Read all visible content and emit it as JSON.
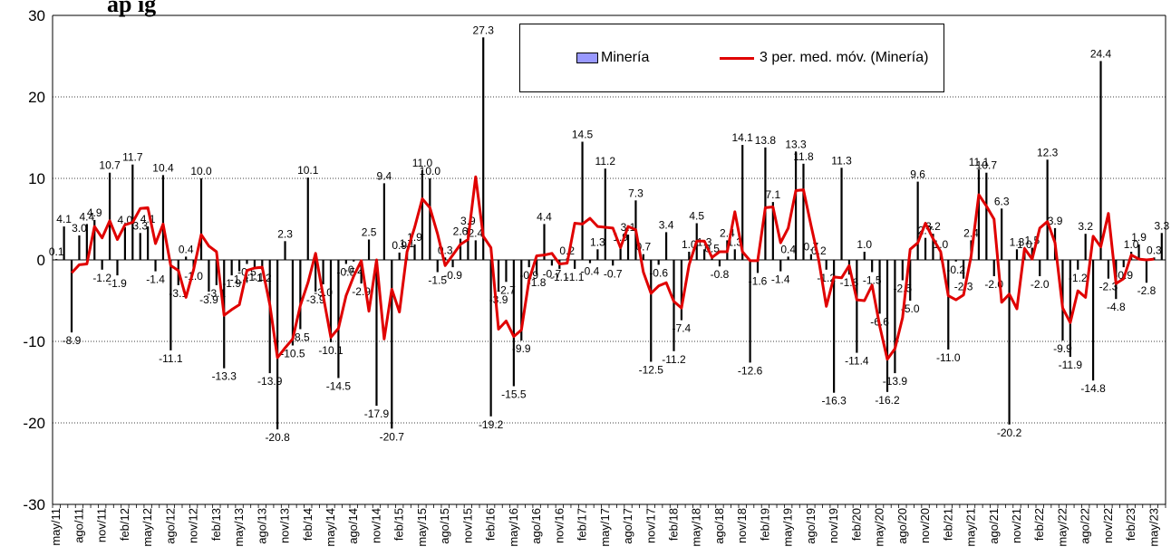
{
  "title_fragment": "ap ig",
  "chart_data": {
    "type": "bar",
    "ylim": [
      -30,
      30
    ],
    "yticks": [
      "30",
      "20",
      "10",
      "0",
      "-10",
      "-20",
      "-30"
    ],
    "xtick_labels": [
      "may/11",
      "ago/11",
      "nov/11",
      "feb/12",
      "may/12",
      "ago/12",
      "nov/12",
      "feb/13",
      "may/13",
      "ago/13",
      "nov/13",
      "feb/14",
      "may/14",
      "ago/14",
      "nov/14",
      "feb/15",
      "may/15",
      "ago/15",
      "nov/15",
      "feb/16",
      "may/16",
      "ago/16",
      "nov/16",
      "feb/17",
      "may/17",
      "ago/17",
      "nov/17",
      "feb/18",
      "may/18",
      "ago/18",
      "nov/18",
      "feb/19",
      "may/19",
      "ago/19",
      "nov/19",
      "feb/20",
      "may/20",
      "ago/20",
      "nov/20",
      "feb/21",
      "may/21",
      "ago/21",
      "nov/21",
      "feb/22",
      "may/22",
      "ago/22",
      "nov/22",
      "feb/23",
      "may/23"
    ],
    "series": [
      {
        "name": "Minería",
        "type": "bar",
        "values": [
          0.1,
          4.1,
          -8.9,
          3.0,
          4.4,
          4.9,
          -1.2,
          10.7,
          -1.9,
          4.0,
          11.7,
          3.3,
          4.1,
          -1.4,
          10.4,
          -11.1,
          -3.1,
          0.4,
          -1.0,
          10.0,
          -3.9,
          -3.1,
          -13.3,
          -1.9,
          -1.4,
          -0.5,
          -1.1,
          -1.2,
          -13.9,
          -20.8,
          2.3,
          -10.5,
          -8.5,
          10.1,
          -3.9,
          -3.0,
          -10.1,
          -14.5,
          -0.5,
          -0.2,
          -2.9,
          2.5,
          -17.9,
          9.4,
          -20.7,
          0.9,
          1.1,
          1.9,
          11.0,
          10.0,
          -1.5,
          0.3,
          -0.9,
          2.6,
          3.9,
          2.4,
          27.3,
          -19.2,
          -3.9,
          -2.7,
          -15.5,
          -9.9,
          -0.9,
          -1.8,
          4.4,
          -0.7,
          -1.1,
          0.2,
          -1.1,
          14.5,
          -0.4,
          1.3,
          11.2,
          -0.7,
          1.9,
          3.1,
          7.3,
          0.7,
          -12.5,
          -0.6,
          3.4,
          -11.2,
          -7.4,
          1.0,
          4.5,
          1.3,
          0.5,
          -0.8,
          2.4,
          1.3,
          14.1,
          -12.6,
          -1.6,
          13.8,
          7.1,
          -1.4,
          0.4,
          13.3,
          11.8,
          0.7,
          0.2,
          -1.2,
          -16.3,
          11.3,
          -1.8,
          -11.4,
          1.0,
          -1.5,
          -6.6,
          -16.2,
          -13.9,
          -2.5,
          -5.0,
          9.6,
          2.7,
          3.2,
          1.0,
          -11.0,
          -0.2,
          -2.3,
          2.4,
          11.1,
          10.7,
          -2.0,
          6.3,
          -20.2,
          1.3,
          1.0,
          1.5,
          -2.0,
          12.3,
          3.9,
          -9.9,
          -11.9,
          -1.2,
          3.2,
          -14.8,
          24.4,
          -2.3,
          -4.8,
          -0.9,
          1.0,
          1.9,
          -2.8,
          0.3,
          3.3
        ]
      },
      {
        "name": "3 per. med. móv. (Minería)",
        "type": "line",
        "color": "#e00000",
        "values": [
          null,
          null,
          -1.6,
          -0.6,
          -0.5,
          4.1,
          2.7,
          4.8,
          2.5,
          4.3,
          4.6,
          6.3,
          6.4,
          2.0,
          4.4,
          -0.7,
          -1.3,
          -4.6,
          -1.2,
          3.1,
          1.7,
          1.0,
          -6.8,
          -6.1,
          -5.5,
          -1.3,
          -1.0,
          -0.9,
          -5.5,
          -12.0,
          -10.8,
          -9.7,
          -5.6,
          -2.8,
          0.8,
          -4.4,
          -9.5,
          -8.4,
          -4.4,
          -2.0,
          -0.1,
          -6.3,
          0.0,
          -9.7,
          -3.6,
          -6.4,
          1.0,
          4.0,
          7.5,
          6.4,
          3.2,
          -0.7,
          0.6,
          1.9,
          2.5,
          10.2,
          2.9,
          1.5,
          -8.5,
          -7.5,
          -9.4,
          -8.6,
          -2.5,
          0.5,
          0.6,
          0.8,
          -0.5,
          -0.4,
          4.5,
          4.4,
          5.1,
          4.1,
          4.0,
          3.9,
          1.5,
          4.1,
          3.7,
          -1.5,
          -4.1,
          -3.2,
          -2.8,
          -5.1,
          -5.9,
          -0.6,
          2.3,
          2.3,
          0.3,
          1.0,
          1.0,
          5.9,
          1.0,
          -0.1,
          -0.1,
          6.4,
          6.5,
          2.1,
          3.9,
          8.5,
          8.6,
          4.2,
          0.0,
          -5.7,
          -2.1,
          -2.2,
          -0.7,
          -4.9,
          -5.0,
          -3.1,
          -8.1,
          -12.2,
          -10.9,
          -7.1,
          1.3,
          2.1,
          4.5,
          2.6,
          1.0,
          -4.4,
          -4.9,
          -4.3,
          0.5,
          8.0,
          6.6,
          5.0,
          -5.2,
          -4.2,
          -6.0,
          1.4,
          0.1,
          3.9,
          4.7,
          2.1,
          -5.9,
          -7.7,
          -3.8,
          -4.6,
          2.9,
          1.6,
          5.7,
          -2.9,
          -2.3,
          0.6,
          0.1,
          0.0,
          0.1
        ]
      }
    ],
    "grid": true,
    "legend": "top-center"
  }
}
